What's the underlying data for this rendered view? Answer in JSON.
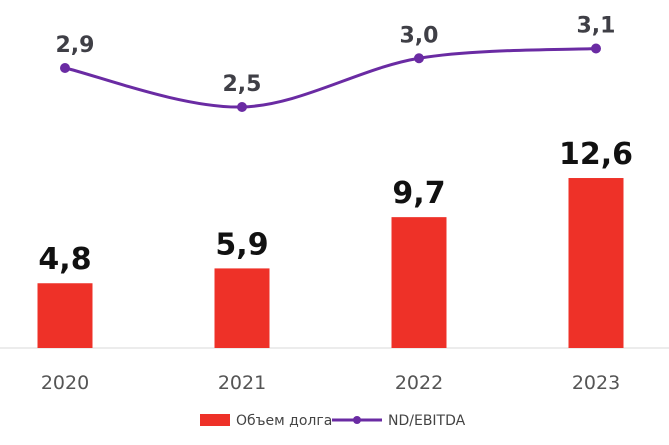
{
  "chart_data": {
    "type": "bar",
    "categories": [
      "2020",
      "2021",
      "2022",
      "2023"
    ],
    "series": [
      {
        "name": "Объем долга",
        "type": "bar",
        "values": [
          4.8,
          5.9,
          9.7,
          12.6
        ],
        "labels": [
          "4,8",
          "5,9",
          "9,7",
          "12,6"
        ],
        "color": "#ee3128"
      },
      {
        "name": "ND/EBITDA",
        "type": "line",
        "values": [
          2.9,
          2.5,
          3.0,
          3.1
        ],
        "labels": [
          "2,9",
          "2,5",
          "3,0",
          "3,1"
        ],
        "color": "#6a2ba3"
      }
    ],
    "title": "",
    "xlabel": "",
    "ylabel": "",
    "grid": false,
    "legend_position": "bottom"
  }
}
